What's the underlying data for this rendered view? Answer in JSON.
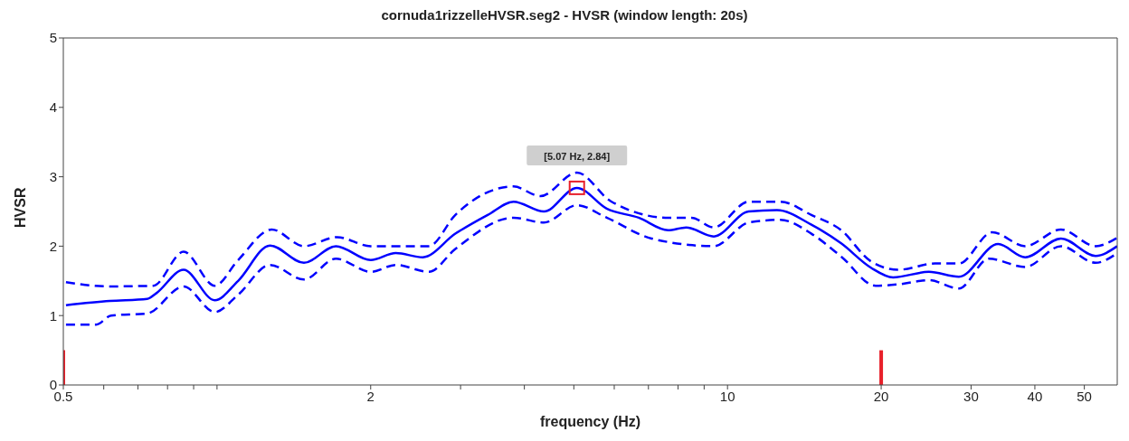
{
  "chart_data": {
    "type": "line",
    "title": "cornuda1rizzelleHVSR.seg2 - HVSR (window length: 20s)",
    "xlabel": "frequency (Hz)",
    "ylabel": "HVSR",
    "log": "x",
    "xlim": [
      0.5,
      58
    ],
    "ylim": [
      0,
      5
    ],
    "xticks": [
      0.5,
      {
        "value": 0.6,
        "label": null
      },
      {
        "value": 0.7,
        "label": null
      },
      {
        "value": 0.8,
        "label": null
      },
      {
        "value": 0.9,
        "label": null
      },
      {
        "value": 1,
        "label": null
      },
      2,
      {
        "value": 3,
        "label": null
      },
      {
        "value": 4,
        "label": null
      },
      {
        "value": 5,
        "label": null
      },
      {
        "value": 6,
        "label": null
      },
      {
        "value": 7,
        "label": null
      },
      {
        "value": 8,
        "label": null
      },
      {
        "value": 9,
        "label": null
      },
      10,
      20,
      30,
      40,
      50
    ],
    "yticks": [
      0,
      1,
      2,
      3,
      4,
      5
    ],
    "grid": false,
    "annotations": [
      {
        "text": "[5.07 Hz, 2.84]",
        "x": 5.07,
        "y": 2.84
      }
    ],
    "series": [
      {
        "color": "#0000ff",
        "line_style": "solid",
        "x": [
          0.506,
          0.617,
          0.73,
          0.76,
          0.86,
          0.99,
          1.1,
          1.27,
          1.48,
          1.71,
          2.0,
          2.24,
          2.53,
          2.93,
          3.39,
          3.81,
          4.37,
          5.07,
          5.8,
          6.7,
          7.65,
          8.3,
          9.4,
          11,
          12.5,
          14.6,
          16.7,
          19.1,
          21.1,
          24.8,
          28.4,
          33.9,
          38.3,
          45,
          52.6,
          58
        ],
        "values": [
          1.15,
          1.21,
          1.24,
          1.32,
          1.66,
          1.22,
          1.5,
          2.01,
          1.76,
          2.0,
          1.8,
          1.9,
          1.84,
          2.18,
          2.45,
          2.64,
          2.5,
          2.84,
          2.54,
          2.41,
          2.23,
          2.27,
          2.14,
          2.5,
          2.52,
          2.31,
          2.04,
          1.69,
          1.55,
          1.63,
          1.56,
          2.03,
          1.84,
          2.11,
          1.86,
          2.0
        ]
      },
      {
        "color": "#0000ff",
        "line_style": "dashed",
        "x": [
          0.506,
          0.617,
          0.75,
          0.86,
          0.99,
          1.1,
          1.28,
          1.48,
          1.72,
          2.0,
          2.24,
          2.6,
          2.93,
          3.81,
          4.3,
          5.07,
          5.9,
          7.65,
          8.5,
          9.4,
          11,
          12.7,
          14.6,
          16.7,
          19.1,
          21.6,
          25.5,
          28.4,
          33,
          38.3,
          45,
          52.6,
          58
        ],
        "values": [
          1.48,
          1.42,
          1.43,
          1.92,
          1.43,
          1.8,
          2.24,
          2.0,
          2.13,
          2.0,
          2.0,
          2.0,
          2.45,
          2.86,
          2.72,
          3.06,
          2.65,
          2.41,
          2.41,
          2.27,
          2.64,
          2.64,
          2.45,
          2.23,
          1.78,
          1.66,
          1.75,
          1.75,
          2.2,
          2.0,
          2.24,
          2.0,
          2.12
        ]
      },
      {
        "color": "#0000ff",
        "line_style": "dashed",
        "x": [
          0.506,
          0.58,
          0.62,
          0.73,
          0.86,
          0.99,
          1.1,
          1.27,
          1.48,
          1.71,
          2.0,
          2.24,
          2.6,
          2.93,
          3.81,
          4.37,
          5.07,
          5.8,
          7.1,
          9.4,
          11,
          12.7,
          14.6,
          16.7,
          19.5,
          21.6,
          24.8,
          28.4,
          32.5,
          38.3,
          45,
          52.6,
          58
        ],
        "values": [
          0.87,
          0.87,
          1.0,
          1.03,
          1.42,
          1.05,
          1.3,
          1.73,
          1.52,
          1.82,
          1.63,
          1.73,
          1.63,
          1.96,
          2.41,
          2.34,
          2.59,
          2.41,
          2.11,
          2.0,
          2.34,
          2.38,
          2.18,
          1.85,
          1.43,
          1.45,
          1.51,
          1.39,
          1.82,
          1.7,
          2.0,
          1.76,
          1.9
        ]
      },
      {
        "type": "scatter",
        "color": "#e8202a",
        "marker": "square",
        "x": [
          5.07
        ],
        "values": [
          2.84
        ]
      },
      {
        "color": "#e8202a",
        "line_style": "solid",
        "x": [
          0.5,
          0.5
        ],
        "values": [
          0,
          0.5
        ]
      },
      {
        "color": "#e8202a",
        "line_style": "solid",
        "x": [
          20,
          20
        ],
        "values": [
          0,
          0.5
        ]
      }
    ]
  }
}
